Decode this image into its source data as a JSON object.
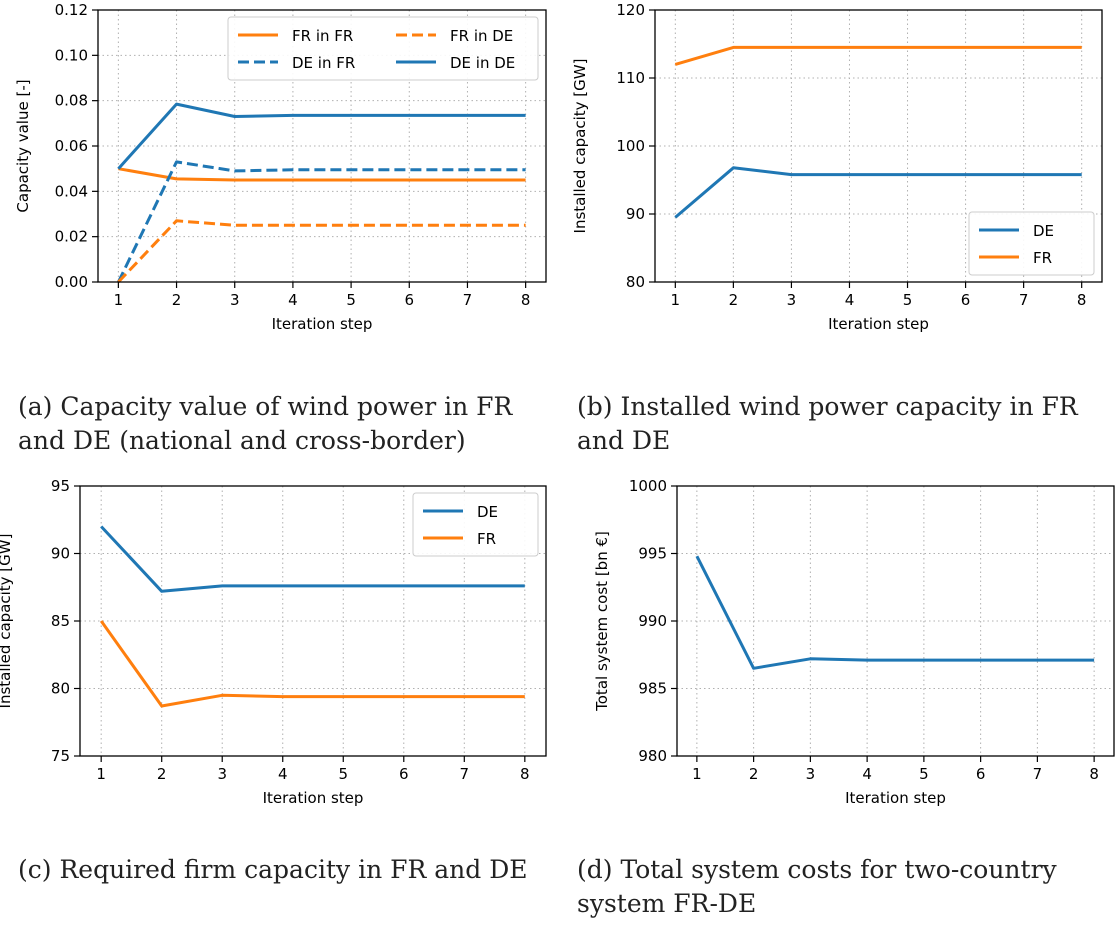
{
  "colors": {
    "DE": "#1f77b4",
    "FR": "#ff7f0e"
  },
  "chart_data": [
    {
      "id": "a",
      "type": "line",
      "caption": "(a) Capacity value of wind power in FR and DE (national and cross-border)",
      "xlabel": "Iteration step",
      "ylabel": "Capacity value [-]",
      "x": [
        1,
        2,
        3,
        4,
        5,
        6,
        7,
        8
      ],
      "xlim": [
        0.65,
        8.35
      ],
      "ylim": [
        0,
        0.12
      ],
      "yticks": [
        0,
        0.02,
        0.04,
        0.06,
        0.08,
        0.1,
        0.12
      ],
      "ytick_labels": [
        "0.00",
        "0.02",
        "0.04",
        "0.06",
        "0.08",
        "0.10",
        "0.12"
      ],
      "grid": true,
      "legend": {
        "placement": "top-right",
        "columns": 2
      },
      "series": [
        {
          "name": "FR in FR",
          "color": "#ff7f0e",
          "dash": "solid",
          "values": [
            0.05,
            0.0455,
            0.045,
            0.045,
            0.045,
            0.045,
            0.045,
            0.045
          ]
        },
        {
          "name": "DE in FR",
          "color": "#1f77b4",
          "dash": "dashed",
          "values": [
            0.0,
            0.053,
            0.049,
            0.0495,
            0.0495,
            0.0495,
            0.0495,
            0.0495
          ]
        },
        {
          "name": "FR in DE",
          "color": "#ff7f0e",
          "dash": "dashed",
          "values": [
            0.0,
            0.027,
            0.025,
            0.025,
            0.025,
            0.025,
            0.025,
            0.025
          ]
        },
        {
          "name": "DE in DE",
          "color": "#1f77b4",
          "dash": "solid",
          "values": [
            0.05,
            0.0785,
            0.073,
            0.0735,
            0.0735,
            0.0735,
            0.0735,
            0.0735
          ]
        }
      ]
    },
    {
      "id": "b",
      "type": "line",
      "caption": "(b) Installed wind power capacity in FR and DE",
      "xlabel": "Iteration step",
      "ylabel": "Installed capacity [GW]",
      "x": [
        1,
        2,
        3,
        4,
        5,
        6,
        7,
        8
      ],
      "xlim": [
        0.65,
        8.35
      ],
      "ylim": [
        80,
        120
      ],
      "yticks": [
        80,
        90,
        100,
        110,
        120
      ],
      "ytick_labels": [
        "80",
        "90",
        "100",
        "110",
        "120"
      ],
      "grid": true,
      "legend": {
        "placement": "bottom-right",
        "columns": 1
      },
      "series": [
        {
          "name": "DE",
          "color": "#1f77b4",
          "dash": "solid",
          "values": [
            89.5,
            96.8,
            95.8,
            95.8,
            95.8,
            95.8,
            95.8,
            95.8
          ]
        },
        {
          "name": "FR",
          "color": "#ff7f0e",
          "dash": "solid",
          "values": [
            112.0,
            114.5,
            114.5,
            114.5,
            114.5,
            114.5,
            114.5,
            114.5
          ]
        }
      ]
    },
    {
      "id": "c",
      "type": "line",
      "caption": "(c) Required firm capacity in FR and DE",
      "xlabel": "Iteration step",
      "ylabel": "Installed capacity [GW]",
      "x": [
        1,
        2,
        3,
        4,
        5,
        6,
        7,
        8
      ],
      "xlim": [
        0.65,
        8.35
      ],
      "ylim": [
        75,
        95
      ],
      "yticks": [
        75,
        80,
        85,
        90,
        95
      ],
      "ytick_labels": [
        "75",
        "80",
        "85",
        "90",
        "95"
      ],
      "grid": true,
      "legend": {
        "placement": "top-right",
        "columns": 1
      },
      "series": [
        {
          "name": "DE",
          "color": "#1f77b4",
          "dash": "solid",
          "values": [
            92.0,
            87.2,
            87.6,
            87.6,
            87.6,
            87.6,
            87.6,
            87.6
          ]
        },
        {
          "name": "FR",
          "color": "#ff7f0e",
          "dash": "solid",
          "values": [
            85.0,
            78.7,
            79.5,
            79.4,
            79.4,
            79.4,
            79.4,
            79.4
          ]
        }
      ]
    },
    {
      "id": "d",
      "type": "line",
      "caption": "(d) Total system costs for two-country system FR-DE",
      "xlabel": "Iteration step",
      "ylabel": "Total system cost [bn €]",
      "x": [
        1,
        2,
        3,
        4,
        5,
        6,
        7,
        8
      ],
      "xlim": [
        0.65,
        8.35
      ],
      "ylim": [
        980,
        1000
      ],
      "yticks": [
        980,
        985,
        990,
        995,
        1000
      ],
      "ytick_labels": [
        "980",
        "985",
        "990",
        "995",
        "1000"
      ],
      "grid": true,
      "legend": null,
      "series": [
        {
          "color": "#1f77b4",
          "dash": "solid",
          "values": [
            994.8,
            986.5,
            987.2,
            987.1,
            987.1,
            987.1,
            987.1,
            987.1
          ]
        }
      ]
    }
  ]
}
